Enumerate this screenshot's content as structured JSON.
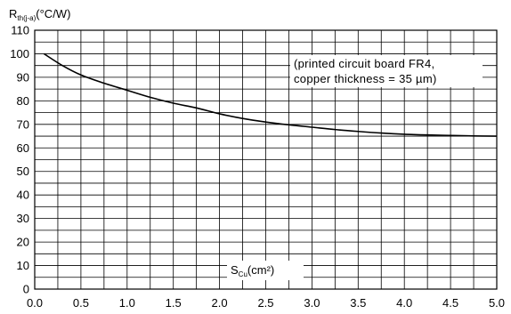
{
  "chart_data": {
    "type": "line",
    "ylabel": {
      "symbol": "R",
      "subscript": "th(j-a)",
      "unit": "(°C/W)"
    },
    "xlabel": {
      "symbol": "S",
      "subscript": "Cu",
      "unit": "(cm²)"
    },
    "annotation": [
      "(printed circuit board FR4,",
      "copper thickness = 35 µm)"
    ],
    "xlim": [
      0.0,
      5.0
    ],
    "ylim": [
      0,
      110
    ],
    "xticks": [
      "0.0",
      "0.5",
      "1.0",
      "1.5",
      "2.0",
      "2.5",
      "3.0",
      "3.5",
      "4.0",
      "4.5",
      "5.0"
    ],
    "yticks": [
      "0",
      "10",
      "20",
      "30",
      "40",
      "50",
      "60",
      "70",
      "80",
      "90",
      "100",
      "110"
    ],
    "grid": true,
    "series": [
      {
        "x": [
          0.1,
          0.3,
          0.5,
          0.75,
          1.0,
          1.25,
          1.5,
          1.75,
          2.0,
          2.25,
          2.5,
          2.75,
          3.0,
          3.25,
          3.5,
          3.75,
          4.0,
          4.25,
          4.5,
          4.75,
          5.0
        ],
        "y": [
          100,
          95,
          91,
          87.5,
          84.5,
          81.5,
          79,
          77,
          74.5,
          72.5,
          71,
          69.8,
          68.8,
          67.8,
          67,
          66.3,
          65.8,
          65.5,
          65.3,
          65.1,
          65
        ]
      }
    ]
  }
}
